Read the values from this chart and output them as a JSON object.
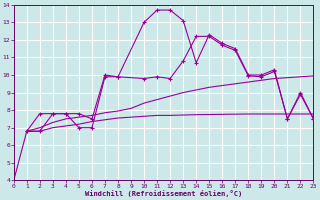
{
  "bg_color": "#cce8e8",
  "line_color": "#990099",
  "text_color": "#660066",
  "grid_color": "#ffffff",
  "xlabel": "Windchill (Refroidissement éolien,°C)",
  "xlim": [
    0,
    23
  ],
  "ylim": [
    4,
    14
  ],
  "xticks": [
    0,
    1,
    2,
    3,
    4,
    5,
    6,
    7,
    8,
    9,
    10,
    11,
    12,
    13,
    14,
    15,
    16,
    17,
    18,
    19,
    20,
    21,
    22,
    23
  ],
  "yticks": [
    4,
    5,
    6,
    7,
    8,
    9,
    10,
    11,
    12,
    13,
    14
  ],
  "series_no_marker_1": {
    "x": [
      0,
      1,
      2,
      3,
      4,
      5,
      6,
      7,
      8,
      9,
      10,
      11,
      12,
      13,
      14,
      15,
      16,
      17,
      18,
      19,
      20,
      21,
      22,
      23
    ],
    "y": [
      4.0,
      6.8,
      6.8,
      7.0,
      7.1,
      7.2,
      7.35,
      7.45,
      7.55,
      7.6,
      7.65,
      7.7,
      7.7,
      7.72,
      7.74,
      7.75,
      7.76,
      7.77,
      7.78,
      7.78,
      7.78,
      7.78,
      7.78,
      7.78
    ]
  },
  "series_no_marker_2": {
    "x": [
      1,
      2,
      3,
      4,
      5,
      6,
      7,
      8,
      9,
      10,
      11,
      12,
      13,
      14,
      15,
      16,
      17,
      18,
      19,
      20,
      21,
      22,
      23
    ],
    "y": [
      6.8,
      7.0,
      7.3,
      7.5,
      7.6,
      7.7,
      7.85,
      7.95,
      8.1,
      8.4,
      8.6,
      8.8,
      9.0,
      9.15,
      9.3,
      9.4,
      9.5,
      9.6,
      9.7,
      9.8,
      9.85,
      9.9,
      9.95
    ]
  },
  "series_marker_1": {
    "x": [
      1,
      2,
      3,
      4,
      5,
      6,
      7,
      8,
      10,
      11,
      12,
      13,
      14,
      15,
      16,
      17,
      18,
      19,
      20,
      21,
      22,
      23
    ],
    "y": [
      6.8,
      6.8,
      7.8,
      7.8,
      7.0,
      7.0,
      9.9,
      9.9,
      13.0,
      13.7,
      13.7,
      13.1,
      10.7,
      12.3,
      11.8,
      11.5,
      10.0,
      10.0,
      10.3,
      7.5,
      9.0,
      7.5
    ]
  },
  "series_marker_2": {
    "x": [
      1,
      2,
      3,
      4,
      5,
      6,
      7,
      8,
      10,
      11,
      12,
      13,
      14,
      15,
      16,
      17,
      18,
      19,
      20,
      21,
      22,
      23
    ],
    "y": [
      6.8,
      7.8,
      7.8,
      7.8,
      7.8,
      7.5,
      10.0,
      9.9,
      9.8,
      9.9,
      9.8,
      10.8,
      12.2,
      12.2,
      11.7,
      11.4,
      9.95,
      9.9,
      10.2,
      7.5,
      8.9,
      7.5
    ]
  }
}
